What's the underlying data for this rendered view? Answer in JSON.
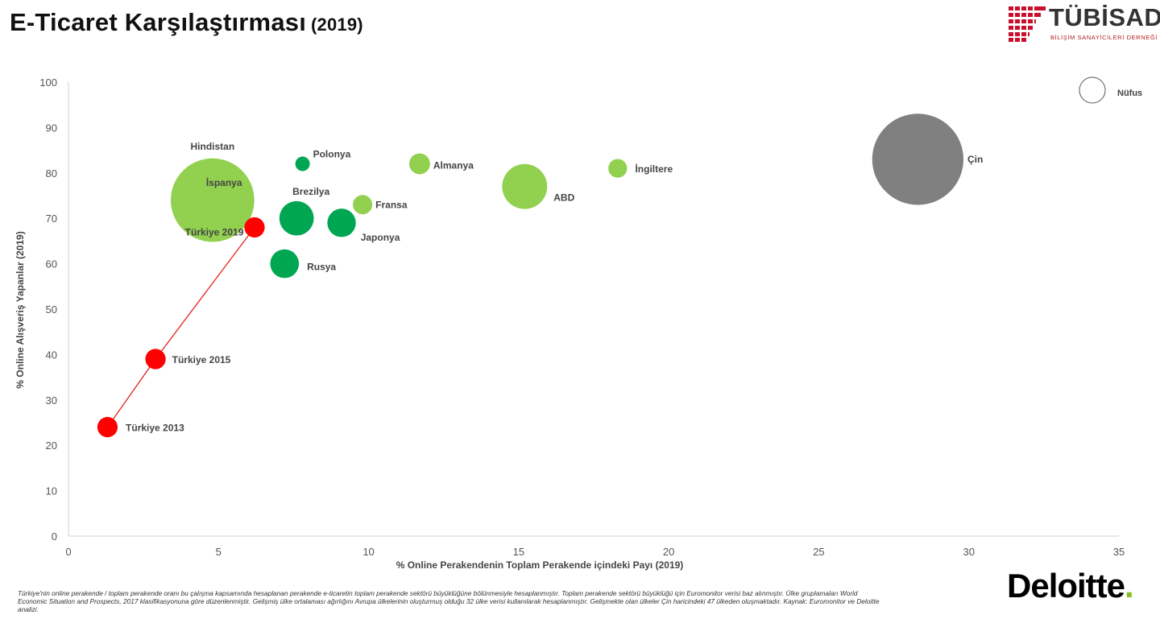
{
  "header": {
    "title": "E-Ticaret Karşılaştırması",
    "title_year": "(2019)"
  },
  "logo": {
    "name": "TÜBİSAD",
    "subtitle": "BİLİŞİM SANAYİCİLERİ DERNEĞİ",
    "color": "#c8102e"
  },
  "chart_data": {
    "type": "scatter",
    "xlabel": "% Online Perakendenin Toplam Perakende içindeki Payı (2019)",
    "ylabel": "% Online Alışveriş Yapanlar (2019)",
    "xlim": [
      0,
      35
    ],
    "ylim": [
      0,
      100
    ],
    "x_ticks": [
      "0",
      "5",
      "10",
      "15",
      "20",
      "25",
      "30",
      "35"
    ],
    "y_ticks": [
      "0",
      "10",
      "20",
      "30",
      "40",
      "50",
      "60",
      "70",
      "80",
      "90",
      "100"
    ],
    "grid": false,
    "legend": {
      "label": "Nüfus",
      "placement": "top-right"
    },
    "colors": {
      "gelismis": "#92d050",
      "gelismekte": "#00a651",
      "cin": "#808080",
      "turkiye": "#ff0000",
      "trend_line": "#e02020"
    },
    "points": [
      {
        "label": "Hindistan",
        "x": 4.8,
        "y": 74,
        "relative_size": 9.3,
        "group": "gelismis"
      },
      {
        "label": "İspanya",
        "x": 5.4,
        "y": 74,
        "relative_size": 0.32,
        "group": "gelismis"
      },
      {
        "label": "Polonya",
        "x": 7.8,
        "y": 82,
        "relative_size": 0.28,
        "group": "gelismekte"
      },
      {
        "label": "Almanya",
        "x": 11.7,
        "y": 82,
        "relative_size": 0.58,
        "group": "gelismis"
      },
      {
        "label": "Fransa",
        "x": 9.8,
        "y": 73,
        "relative_size": 0.5,
        "group": "gelismis"
      },
      {
        "label": "ABD",
        "x": 15.2,
        "y": 77,
        "relative_size": 2.7,
        "group": "gelismis"
      },
      {
        "label": "İngiltere",
        "x": 18.3,
        "y": 81,
        "relative_size": 0.47,
        "group": "gelismis"
      },
      {
        "label": "Çin",
        "x": 28.3,
        "y": 83,
        "relative_size": 11.1,
        "group": "cin"
      },
      {
        "label": "Brezilya",
        "x": 7.6,
        "y": 70,
        "relative_size": 1.58,
        "group": "gelismekte"
      },
      {
        "label": "Japonya",
        "x": 9.1,
        "y": 69,
        "relative_size": 1.08,
        "group": "gelismekte"
      },
      {
        "label": "Rusya",
        "x": 7.2,
        "y": 60,
        "relative_size": 1.1,
        "group": "gelismekte"
      },
      {
        "label": "Türkiye 2019",
        "x": 6.2,
        "y": 68,
        "relative_size": 0.55,
        "group": "turkiye"
      },
      {
        "label": "Türkiye 2015",
        "x": 2.9,
        "y": 39,
        "relative_size": 0.55,
        "group": "turkiye"
      },
      {
        "label": "Türkiye 2013",
        "x": 1.3,
        "y": 24,
        "relative_size": 0.55,
        "group": "turkiye"
      }
    ],
    "trend_line": [
      "Türkiye 2013",
      "Türkiye 2015",
      "Türkiye 2019"
    ]
  },
  "footnote": "Türkiye'nin online perakende / toplam perakende oranı bu çalışma kapsamında hesaplanan perakende e-ticaretin toplam perakende sektörü büyüklüğüne bölünmesiyle hesaplanmıştır. Toplam perakende sektörü büyüklüğü için Euromonitor verisi baz alınmıştır. Ülke gruplamaları World Economic Situation and Prospects, 2017 klasifikasyonuna göre düzenlenmiştir. Gelişmiş ülke ortalaması ağırlığını Avrupa ülkelerinin oluşturmuş olduğu 32 ülke verisi kullanılarak hesaplanmıştır. Gelişmekte olan ülkeler Çin haricindeki 47 ülkeden oluşmaktadır. Kaynak: Euromonitor ve Deloitte analizi.",
  "brand": {
    "deloitte": "Deloitte",
    "deloitte_dot": ".",
    "deloitte_dot_color": "#86bc25"
  }
}
